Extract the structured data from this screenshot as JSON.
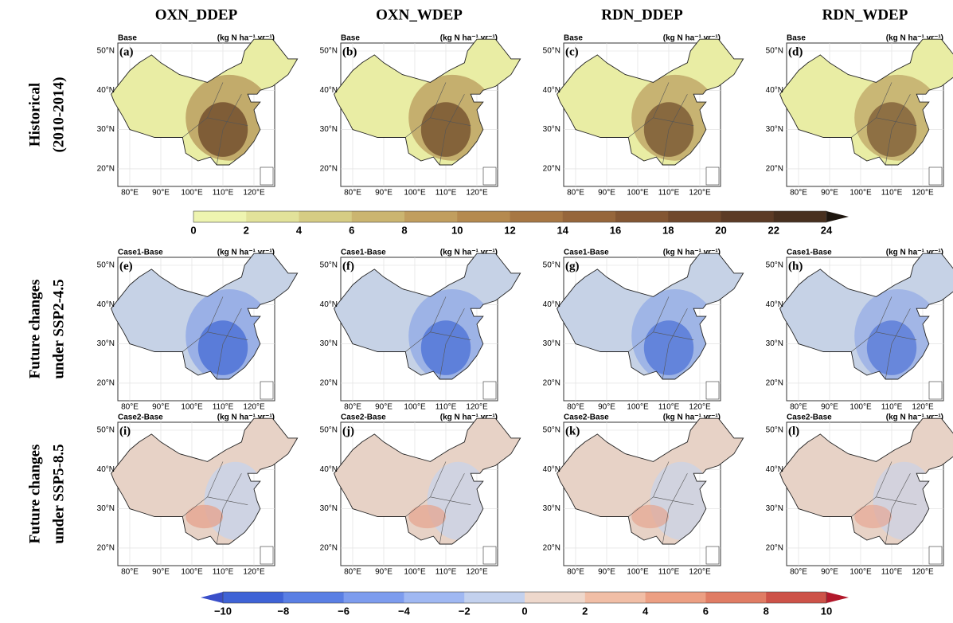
{
  "columns": [
    "OXN_DDEP",
    "OXN_WDEP",
    "RDN_DDEP",
    "RDN_WDEP"
  ],
  "rows": [
    {
      "label_lines": [
        "Historical",
        "(2010-2014)"
      ],
      "panel_title": "Base"
    },
    {
      "label_lines": [
        "Future changes",
        "under SSP2-4.5"
      ],
      "panel_title": "Case1-Base"
    },
    {
      "label_lines": [
        "Future changes",
        "under SSP5-8.5"
      ],
      "panel_title": "Case2-Base"
    }
  ],
  "panel_letters": [
    "(a)",
    "(b)",
    "(c)",
    "(d)",
    "(e)",
    "(f)",
    "(g)",
    "(h)",
    "(i)",
    "(j)",
    "(k)",
    "(l)"
  ],
  "units": "(kg N ha⁻¹ yr⁻¹)",
  "lat_ticks": [
    "50°N",
    "40°N",
    "30°N",
    "20°N"
  ],
  "lon_ticks": [
    "80°E",
    "90°E",
    "100°E",
    "110°E",
    "120°E"
  ],
  "colorbar_absolute": {
    "ticks": [
      0,
      2,
      4,
      6,
      8,
      10,
      12,
      14,
      16,
      18,
      20,
      22,
      24
    ],
    "colors": [
      "#eef4b0",
      "#e2e29a",
      "#d6cc84",
      "#cbb570",
      "#c19e5e",
      "#b58a4f",
      "#a77744",
      "#96663b",
      "#835633",
      "#70482c",
      "#5c3b26",
      "#48301f"
    ]
  },
  "colorbar_change": {
    "ticks": [
      "−10",
      "−8",
      "−6",
      "−4",
      "−2",
      "0",
      "2",
      "4",
      "6",
      "8",
      "10"
    ],
    "colors": [
      "#3f63d6",
      "#5a7fe4",
      "#7d9cee",
      "#a0b8f2",
      "#c3d1ee",
      "#eed8cc",
      "#f1bea6",
      "#ec9f83",
      "#e07c64",
      "#cd5248"
    ]
  }
}
